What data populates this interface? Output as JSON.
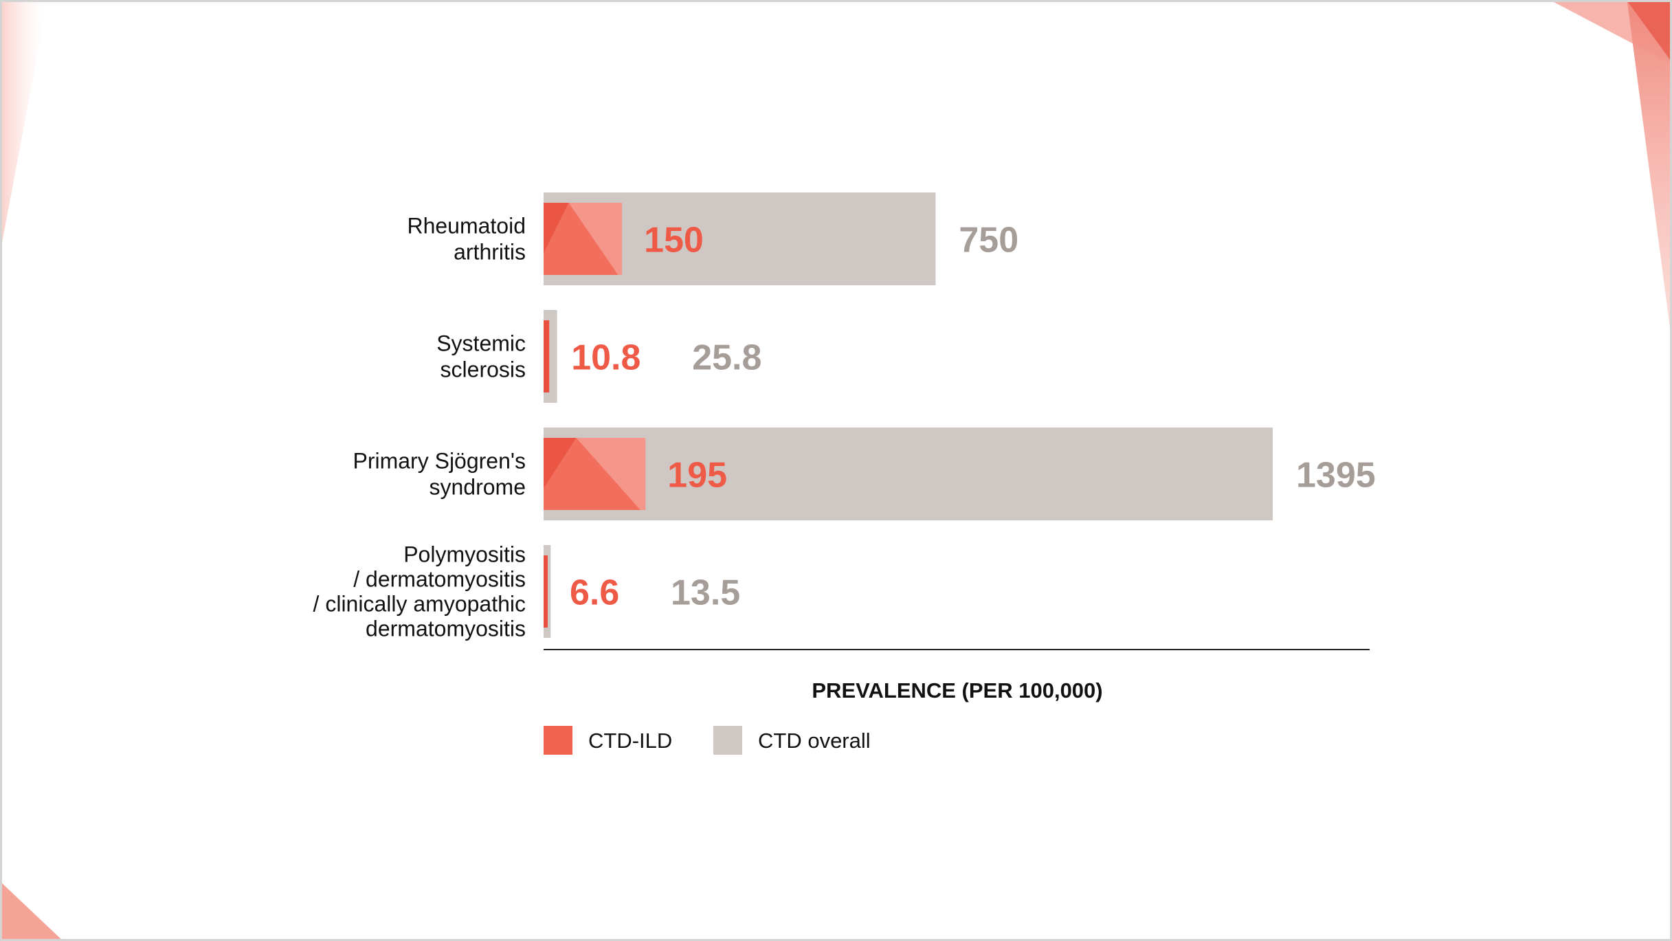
{
  "colors": {
    "ild": "#f0624d",
    "ild_light": "#f5968a",
    "ild_dark": "#e84f3d",
    "overall": "#cfc7c4",
    "ild_text": "#ef5a47",
    "overall_text": "#a69c98",
    "axis": "#222222"
  },
  "decoration": {
    "corner_accent_color": "#f08a7e"
  },
  "chart_data": {
    "type": "bar",
    "orientation": "horizontal",
    "categories": [
      [
        "Rheumatoid",
        "arthritis"
      ],
      [
        "Systemic",
        "sclerosis"
      ],
      [
        "Primary Sjögren's",
        "syndrome"
      ],
      [
        "Polymyositis",
        "/ dermatomyositis",
        "/ clinically amyopathic",
        "dermatomyositis"
      ]
    ],
    "series": [
      {
        "name": "CTD overall",
        "values": [
          750,
          25.8,
          1395,
          13.5
        ],
        "labels": [
          "750",
          "25.8",
          "1395",
          "13.5"
        ]
      },
      {
        "name": "CTD-ILD",
        "values": [
          150,
          10.8,
          195,
          6.6
        ],
        "labels": [
          "150",
          "10.8",
          "195",
          "6.6"
        ]
      }
    ],
    "xlabel": "PREVALENCE (PER 100,000)",
    "xlim": [
      0,
      1580
    ],
    "grid": false,
    "legend_position": "bottom-left"
  }
}
